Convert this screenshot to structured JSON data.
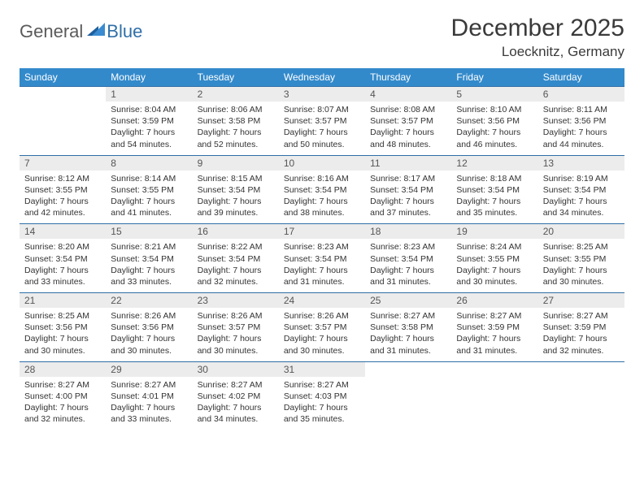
{
  "logo": {
    "general": "General",
    "blue": "Blue"
  },
  "title": "December 2025",
  "location": "Loecknitz, Germany",
  "colors": {
    "header_bg": "#338acb",
    "header_text": "#ffffff",
    "daynum_bg": "#ececec",
    "row_border": "#2f6fa8",
    "body_text": "#333333",
    "title_text": "#3a3a3a",
    "logo_gray": "#5a5a5a",
    "logo_blue": "#2f6fa8"
  },
  "day_headers": [
    "Sunday",
    "Monday",
    "Tuesday",
    "Wednesday",
    "Thursday",
    "Friday",
    "Saturday"
  ],
  "weeks": [
    {
      "nums": [
        "",
        "1",
        "2",
        "3",
        "4",
        "5",
        "6"
      ],
      "cells": [
        null,
        {
          "sunrise": "8:04 AM",
          "sunset": "3:59 PM",
          "daylight": "7 hours and 54 minutes."
        },
        {
          "sunrise": "8:06 AM",
          "sunset": "3:58 PM",
          "daylight": "7 hours and 52 minutes."
        },
        {
          "sunrise": "8:07 AM",
          "sunset": "3:57 PM",
          "daylight": "7 hours and 50 minutes."
        },
        {
          "sunrise": "8:08 AM",
          "sunset": "3:57 PM",
          "daylight": "7 hours and 48 minutes."
        },
        {
          "sunrise": "8:10 AM",
          "sunset": "3:56 PM",
          "daylight": "7 hours and 46 minutes."
        },
        {
          "sunrise": "8:11 AM",
          "sunset": "3:56 PM",
          "daylight": "7 hours and 44 minutes."
        }
      ]
    },
    {
      "nums": [
        "7",
        "8",
        "9",
        "10",
        "11",
        "12",
        "13"
      ],
      "cells": [
        {
          "sunrise": "8:12 AM",
          "sunset": "3:55 PM",
          "daylight": "7 hours and 42 minutes."
        },
        {
          "sunrise": "8:14 AM",
          "sunset": "3:55 PM",
          "daylight": "7 hours and 41 minutes."
        },
        {
          "sunrise": "8:15 AM",
          "sunset": "3:54 PM",
          "daylight": "7 hours and 39 minutes."
        },
        {
          "sunrise": "8:16 AM",
          "sunset": "3:54 PM",
          "daylight": "7 hours and 38 minutes."
        },
        {
          "sunrise": "8:17 AM",
          "sunset": "3:54 PM",
          "daylight": "7 hours and 37 minutes."
        },
        {
          "sunrise": "8:18 AM",
          "sunset": "3:54 PM",
          "daylight": "7 hours and 35 minutes."
        },
        {
          "sunrise": "8:19 AM",
          "sunset": "3:54 PM",
          "daylight": "7 hours and 34 minutes."
        }
      ]
    },
    {
      "nums": [
        "14",
        "15",
        "16",
        "17",
        "18",
        "19",
        "20"
      ],
      "cells": [
        {
          "sunrise": "8:20 AM",
          "sunset": "3:54 PM",
          "daylight": "7 hours and 33 minutes."
        },
        {
          "sunrise": "8:21 AM",
          "sunset": "3:54 PM",
          "daylight": "7 hours and 33 minutes."
        },
        {
          "sunrise": "8:22 AM",
          "sunset": "3:54 PM",
          "daylight": "7 hours and 32 minutes."
        },
        {
          "sunrise": "8:23 AM",
          "sunset": "3:54 PM",
          "daylight": "7 hours and 31 minutes."
        },
        {
          "sunrise": "8:23 AM",
          "sunset": "3:54 PM",
          "daylight": "7 hours and 31 minutes."
        },
        {
          "sunrise": "8:24 AM",
          "sunset": "3:55 PM",
          "daylight": "7 hours and 30 minutes."
        },
        {
          "sunrise": "8:25 AM",
          "sunset": "3:55 PM",
          "daylight": "7 hours and 30 minutes."
        }
      ]
    },
    {
      "nums": [
        "21",
        "22",
        "23",
        "24",
        "25",
        "26",
        "27"
      ],
      "cells": [
        {
          "sunrise": "8:25 AM",
          "sunset": "3:56 PM",
          "daylight": "7 hours and 30 minutes."
        },
        {
          "sunrise": "8:26 AM",
          "sunset": "3:56 PM",
          "daylight": "7 hours and 30 minutes."
        },
        {
          "sunrise": "8:26 AM",
          "sunset": "3:57 PM",
          "daylight": "7 hours and 30 minutes."
        },
        {
          "sunrise": "8:26 AM",
          "sunset": "3:57 PM",
          "daylight": "7 hours and 30 minutes."
        },
        {
          "sunrise": "8:27 AM",
          "sunset": "3:58 PM",
          "daylight": "7 hours and 31 minutes."
        },
        {
          "sunrise": "8:27 AM",
          "sunset": "3:59 PM",
          "daylight": "7 hours and 31 minutes."
        },
        {
          "sunrise": "8:27 AM",
          "sunset": "3:59 PM",
          "daylight": "7 hours and 32 minutes."
        }
      ]
    },
    {
      "nums": [
        "28",
        "29",
        "30",
        "31",
        "",
        "",
        ""
      ],
      "cells": [
        {
          "sunrise": "8:27 AM",
          "sunset": "4:00 PM",
          "daylight": "7 hours and 32 minutes."
        },
        {
          "sunrise": "8:27 AM",
          "sunset": "4:01 PM",
          "daylight": "7 hours and 33 minutes."
        },
        {
          "sunrise": "8:27 AM",
          "sunset": "4:02 PM",
          "daylight": "7 hours and 34 minutes."
        },
        {
          "sunrise": "8:27 AM",
          "sunset": "4:03 PM",
          "daylight": "7 hours and 35 minutes."
        },
        null,
        null,
        null
      ]
    }
  ],
  "labels": {
    "sunrise": "Sunrise: ",
    "sunset": "Sunset: ",
    "daylight": "Daylight: "
  }
}
